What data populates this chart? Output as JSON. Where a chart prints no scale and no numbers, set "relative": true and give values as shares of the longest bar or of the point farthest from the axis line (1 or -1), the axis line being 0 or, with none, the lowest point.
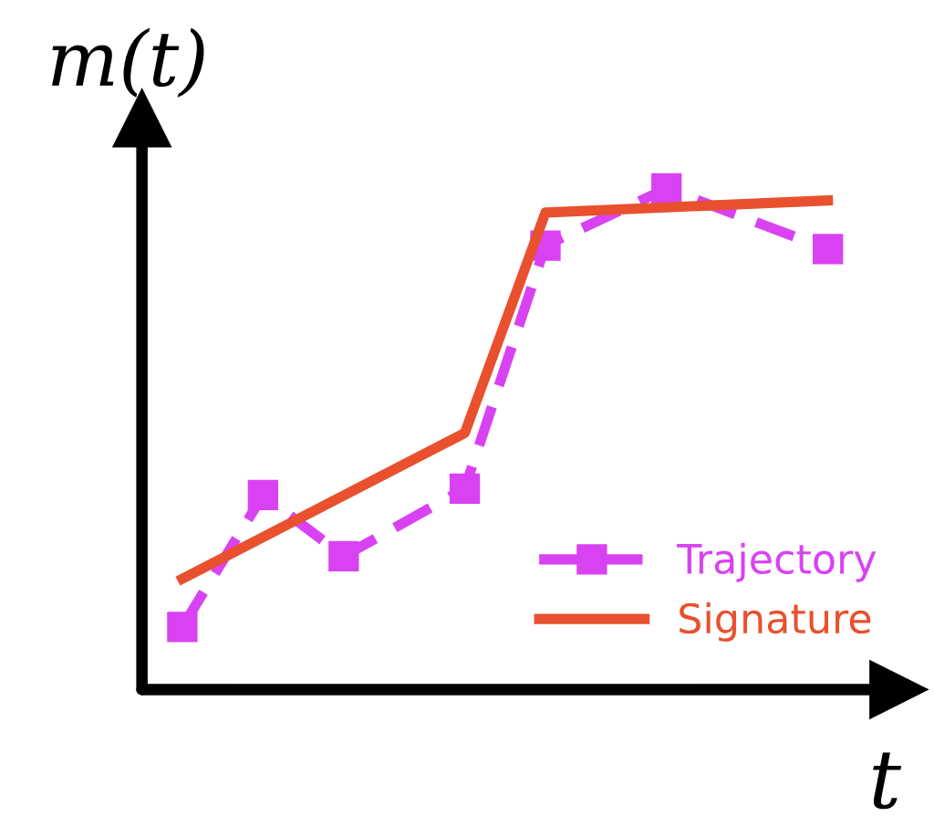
{
  "chart_data": {
    "type": "line",
    "relative": true,
    "xlabel": "t",
    "ylabel": "m(t)",
    "legend": "bottom right",
    "categories": [
      null,
      null,
      null,
      null,
      null,
      null,
      null,
      null,
      null,
      null,
      null,
      null,
      null,
      null,
      null,
      null,
      null
    ],
    "series": [
      {
        "name": "Trajectory",
        "color": "#d942f2",
        "line_style": "dashed",
        "marker": "square",
        "values": [
          0.125,
          null,
          0.388,
          null,
          0.266,
          null,
          null,
          0.401,
          null,
          0.886,
          null,
          null,
          1.0,
          null,
          null,
          null,
          0.879
        ]
      },
      {
        "name": "Signature",
        "color": "#e8502e",
        "line_style": "solid",
        "marker": "none",
        "values": [
          0.221,
          null,
          null,
          null,
          null,
          null,
          null,
          0.512,
          null,
          0.952,
          null,
          null,
          null,
          null,
          null,
          null,
          0.976
        ]
      }
    ]
  }
}
